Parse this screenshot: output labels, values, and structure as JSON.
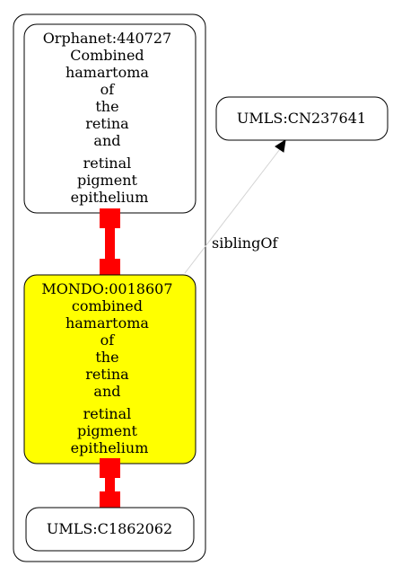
{
  "graph": {
    "colors": {
      "highlight_fill": "#ffff00",
      "equivalence_edge": "#ff0000",
      "sibling_edge": "#d3d3d3",
      "stroke": "#000000"
    },
    "nodes": {
      "orphanet": {
        "lines": [
          "Orphanet:440727",
          "Combined",
          "hamartoma",
          "of",
          "the",
          "retina",
          "and",
          "retinal",
          "pigment",
          "epithelium"
        ]
      },
      "mondo": {
        "lines": [
          "MONDO:0018607",
          "combined",
          "hamartoma",
          "of",
          "the",
          "retina",
          "and",
          "retinal",
          "pigment",
          "epithelium"
        ]
      },
      "umls_c": {
        "lines": [
          "UMLS:C1862062"
        ]
      },
      "umls_cn": {
        "lines": [
          "UMLS:CN237641"
        ]
      }
    },
    "edges": {
      "sibling": {
        "label": "siblingOf"
      }
    }
  }
}
